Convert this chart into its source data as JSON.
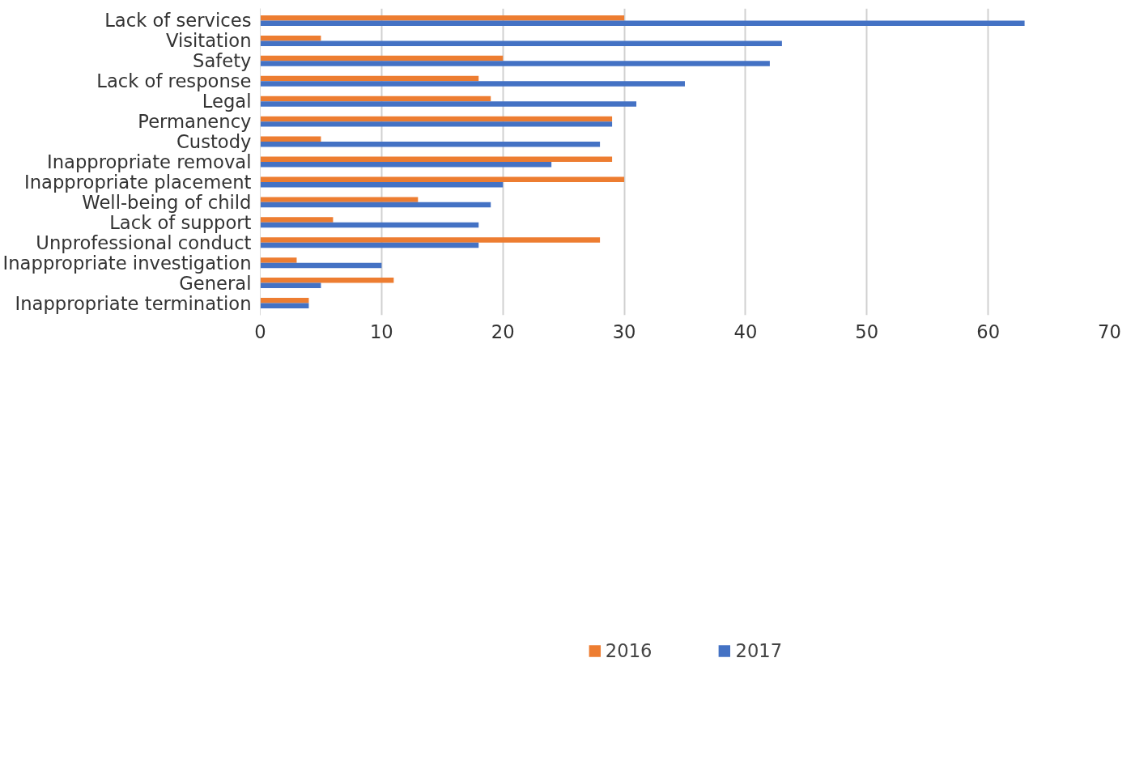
{
  "chart_data": {
    "type": "bar",
    "orientation": "horizontal",
    "categories": [
      "Lack of services",
      "Visitation",
      "Safety",
      "Lack of response",
      "Legal",
      "Permanency",
      "Custody",
      "Inappropriate removal",
      "Inappropriate placement",
      "Well-being of child",
      "Lack of support",
      "Unprofessional conduct",
      "Inappropriate investigation",
      "General",
      "Inappropriate termination"
    ],
    "series": [
      {
        "name": "2016",
        "color": "#ed7d31",
        "values": [
          30,
          5,
          20,
          18,
          19,
          29,
          5,
          29,
          30,
          13,
          6,
          28,
          3,
          11,
          4
        ]
      },
      {
        "name": "2017",
        "color": "#4472c4",
        "values": [
          63,
          43,
          42,
          35,
          31,
          29,
          28,
          24,
          20,
          19,
          18,
          18,
          10,
          5,
          4
        ]
      }
    ],
    "xlim": [
      0,
      70
    ],
    "xticks": [
      0,
      10,
      20,
      30,
      40,
      50,
      60,
      70
    ],
    "grid": "x",
    "legend": "bottom"
  }
}
